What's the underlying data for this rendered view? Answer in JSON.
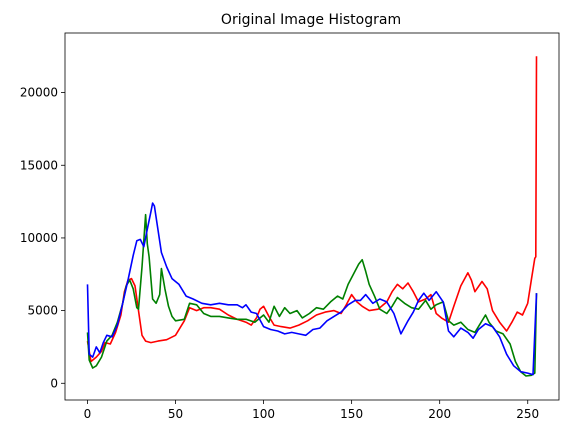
{
  "chart_data": {
    "type": "line",
    "title": "Original Image Histogram",
    "xlabel": "",
    "ylabel": "",
    "xlim": [
      -12.75,
      267.75
    ],
    "ylim": [
      -1150,
      24100
    ],
    "xticks": [
      0,
      50,
      100,
      150,
      200,
      250
    ],
    "yticks": [
      0,
      5000,
      10000,
      15000,
      20000
    ],
    "grid": false,
    "series": [
      {
        "color": "#ff0000",
        "points": [
          [
            0,
            2900
          ],
          [
            2,
            1500
          ],
          [
            5,
            1800
          ],
          [
            8,
            2200
          ],
          [
            10,
            2800
          ],
          [
            13,
            2700
          ],
          [
            16,
            3500
          ],
          [
            19,
            4700
          ],
          [
            21,
            6300
          ],
          [
            23,
            7100
          ],
          [
            25,
            7200
          ],
          [
            27,
            6700
          ],
          [
            29,
            5000
          ],
          [
            31,
            3300
          ],
          [
            33,
            2900
          ],
          [
            36,
            2800
          ],
          [
            40,
            2900
          ],
          [
            45,
            3000
          ],
          [
            50,
            3300
          ],
          [
            55,
            4300
          ],
          [
            58,
            5200
          ],
          [
            62,
            5000
          ],
          [
            66,
            5200
          ],
          [
            70,
            5200
          ],
          [
            75,
            5100
          ],
          [
            80,
            4700
          ],
          [
            85,
            4400
          ],
          [
            90,
            4200
          ],
          [
            93,
            4000
          ],
          [
            96,
            4500
          ],
          [
            98,
            5100
          ],
          [
            100,
            5300
          ],
          [
            103,
            4600
          ],
          [
            106,
            4000
          ],
          [
            110,
            3900
          ],
          [
            115,
            3800
          ],
          [
            120,
            4000
          ],
          [
            125,
            4300
          ],
          [
            130,
            4700
          ],
          [
            135,
            4900
          ],
          [
            140,
            5000
          ],
          [
            144,
            4800
          ],
          [
            147,
            5400
          ],
          [
            150,
            6100
          ],
          [
            153,
            5600
          ],
          [
            156,
            5300
          ],
          [
            160,
            5000
          ],
          [
            165,
            5100
          ],
          [
            170,
            5600
          ],
          [
            173,
            6300
          ],
          [
            176,
            6800
          ],
          [
            179,
            6500
          ],
          [
            182,
            6900
          ],
          [
            185,
            6300
          ],
          [
            188,
            5600
          ],
          [
            192,
            5800
          ],
          [
            195,
            6100
          ],
          [
            198,
            4800
          ],
          [
            201,
            4500
          ],
          [
            205,
            4200
          ],
          [
            208,
            5300
          ],
          [
            212,
            6700
          ],
          [
            216,
            7600
          ],
          [
            218,
            7100
          ],
          [
            220,
            6300
          ],
          [
            224,
            7000
          ],
          [
            227,
            6500
          ],
          [
            230,
            5000
          ],
          [
            234,
            4200
          ],
          [
            238,
            3600
          ],
          [
            241,
            4200
          ],
          [
            244,
            4900
          ],
          [
            247,
            4700
          ],
          [
            250,
            5500
          ],
          [
            252,
            7100
          ],
          [
            254,
            8600
          ],
          [
            254.6,
            8700
          ],
          [
            255,
            22500
          ]
        ]
      },
      {
        "color": "#008000",
        "points": [
          [
            0,
            3500
          ],
          [
            1,
            1600
          ],
          [
            3,
            1050
          ],
          [
            5,
            1200
          ],
          [
            8,
            1800
          ],
          [
            11,
            2900
          ],
          [
            14,
            3300
          ],
          [
            17,
            4200
          ],
          [
            20,
            5500
          ],
          [
            22,
            6700
          ],
          [
            24,
            7100
          ],
          [
            26,
            6500
          ],
          [
            28,
            5200
          ],
          [
            29,
            5100
          ],
          [
            31,
            8000
          ],
          [
            33,
            11600
          ],
          [
            34,
            9600
          ],
          [
            35,
            8700
          ],
          [
            37,
            5800
          ],
          [
            39,
            5500
          ],
          [
            41,
            6100
          ],
          [
            42,
            7900
          ],
          [
            44,
            6500
          ],
          [
            46,
            5300
          ],
          [
            48,
            4600
          ],
          [
            50,
            4300
          ],
          [
            55,
            4400
          ],
          [
            58,
            5500
          ],
          [
            62,
            5400
          ],
          [
            66,
            4800
          ],
          [
            70,
            4600
          ],
          [
            75,
            4600
          ],
          [
            80,
            4500
          ],
          [
            85,
            4400
          ],
          [
            90,
            4400
          ],
          [
            95,
            4200
          ],
          [
            100,
            4700
          ],
          [
            103,
            4200
          ],
          [
            106,
            5300
          ],
          [
            109,
            4600
          ],
          [
            112,
            5200
          ],
          [
            115,
            4800
          ],
          [
            119,
            5000
          ],
          [
            122,
            4500
          ],
          [
            126,
            4800
          ],
          [
            130,
            5200
          ],
          [
            134,
            5100
          ],
          [
            138,
            5600
          ],
          [
            142,
            6000
          ],
          [
            145,
            5800
          ],
          [
            148,
            6800
          ],
          [
            151,
            7500
          ],
          [
            154,
            8200
          ],
          [
            156,
            8500
          ],
          [
            158,
            7700
          ],
          [
            160,
            6800
          ],
          [
            163,
            6000
          ],
          [
            166,
            5100
          ],
          [
            170,
            4800
          ],
          [
            173,
            5300
          ],
          [
            176,
            5900
          ],
          [
            180,
            5500
          ],
          [
            184,
            5200
          ],
          [
            188,
            5100
          ],
          [
            192,
            5700
          ],
          [
            195,
            5100
          ],
          [
            198,
            5400
          ],
          [
            202,
            5600
          ],
          [
            205,
            4300
          ],
          [
            208,
            4000
          ],
          [
            212,
            4200
          ],
          [
            216,
            3700
          ],
          [
            220,
            3500
          ],
          [
            224,
            4300
          ],
          [
            226,
            4700
          ],
          [
            228,
            4200
          ],
          [
            232,
            3600
          ],
          [
            236,
            3400
          ],
          [
            240,
            2700
          ],
          [
            243,
            1500
          ],
          [
            246,
            800
          ],
          [
            249,
            500
          ],
          [
            252,
            550
          ],
          [
            254,
            700
          ],
          [
            255,
            6200
          ]
        ]
      },
      {
        "color": "#0000ff",
        "points": [
          [
            0,
            6800
          ],
          [
            1,
            2000
          ],
          [
            3,
            1800
          ],
          [
            5,
            2500
          ],
          [
            7,
            2100
          ],
          [
            9,
            2800
          ],
          [
            11,
            3300
          ],
          [
            14,
            3200
          ],
          [
            17,
            4000
          ],
          [
            20,
            5500
          ],
          [
            23,
            7100
          ],
          [
            26,
            8800
          ],
          [
            28,
            9800
          ],
          [
            30,
            9900
          ],
          [
            32,
            9400
          ],
          [
            34,
            10600
          ],
          [
            36,
            11800
          ],
          [
            37,
            12400
          ],
          [
            38,
            12200
          ],
          [
            40,
            10600
          ],
          [
            42,
            9000
          ],
          [
            45,
            8000
          ],
          [
            48,
            7200
          ],
          [
            52,
            6800
          ],
          [
            56,
            6000
          ],
          [
            60,
            5800
          ],
          [
            65,
            5500
          ],
          [
            70,
            5400
          ],
          [
            75,
            5500
          ],
          [
            80,
            5400
          ],
          [
            85,
            5400
          ],
          [
            88,
            5200
          ],
          [
            90,
            5400
          ],
          [
            93,
            4900
          ],
          [
            96,
            4800
          ],
          [
            100,
            3900
          ],
          [
            104,
            3700
          ],
          [
            108,
            3600
          ],
          [
            112,
            3400
          ],
          [
            116,
            3500
          ],
          [
            120,
            3400
          ],
          [
            124,
            3300
          ],
          [
            128,
            3700
          ],
          [
            132,
            3800
          ],
          [
            136,
            4300
          ],
          [
            140,
            4600
          ],
          [
            144,
            4900
          ],
          [
            148,
            5400
          ],
          [
            152,
            5700
          ],
          [
            155,
            5700
          ],
          [
            158,
            6100
          ],
          [
            162,
            5500
          ],
          [
            166,
            5800
          ],
          [
            170,
            5600
          ],
          [
            174,
            4800
          ],
          [
            178,
            3400
          ],
          [
            182,
            4300
          ],
          [
            185,
            4900
          ],
          [
            188,
            5700
          ],
          [
            191,
            6200
          ],
          [
            194,
            5700
          ],
          [
            198,
            6300
          ],
          [
            202,
            5600
          ],
          [
            205,
            3600
          ],
          [
            208,
            3200
          ],
          [
            212,
            3800
          ],
          [
            216,
            3500
          ],
          [
            219,
            3100
          ],
          [
            222,
            3700
          ],
          [
            226,
            4100
          ],
          [
            230,
            3900
          ],
          [
            234,
            3200
          ],
          [
            238,
            2000
          ],
          [
            242,
            1200
          ],
          [
            246,
            800
          ],
          [
            250,
            700
          ],
          [
            253,
            600
          ],
          [
            255,
            6200
          ]
        ]
      }
    ]
  }
}
